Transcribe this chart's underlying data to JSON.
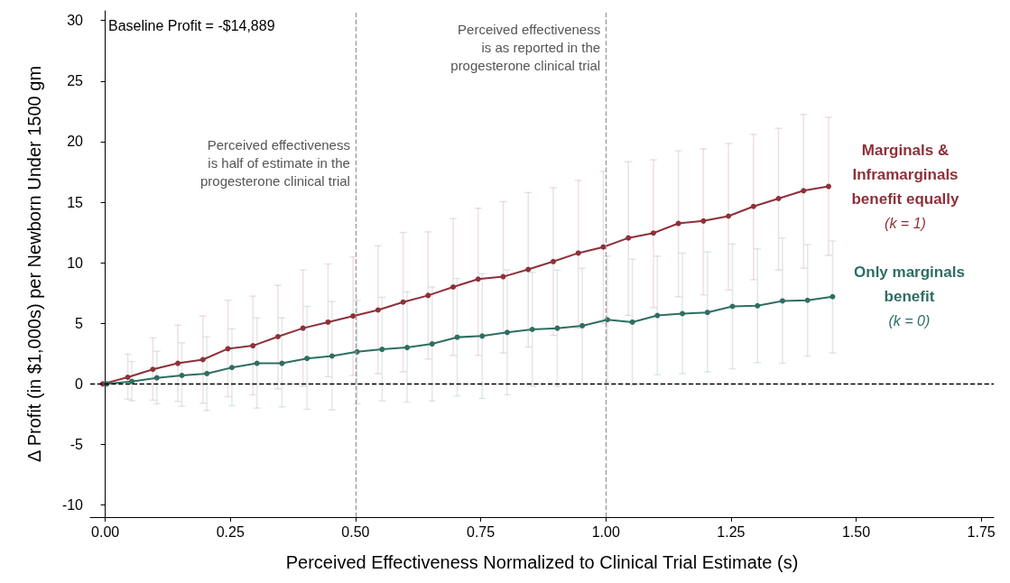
{
  "chart_data": {
    "type": "line",
    "xlabel": "Perceived Effectiveness Normalized to Clinical Trial Estimate (s)",
    "ylabel": "Δ Profit (in $1,000s) per Newborn Under 1500 gm",
    "series": [
      {
        "name": "Marginals &\nInframarginals\nbenefit equally\n(k = 1)",
        "color": "#8e3039",
        "x": [
          -0.005,
          0.045,
          0.095,
          0.145,
          0.195,
          0.245,
          0.295,
          0.345,
          0.395,
          0.445,
          0.495,
          0.545,
          0.595,
          0.645,
          0.695,
          0.745,
          0.795,
          0.845,
          0.895,
          0.945,
          0.995,
          1.045,
          1.095,
          1.145,
          1.195,
          1.245,
          1.295,
          1.345,
          1.395,
          1.445
        ],
        "values": [
          0,
          0.55,
          1.2,
          1.7,
          2.0,
          2.9,
          3.15,
          3.9,
          4.6,
          5.1,
          5.6,
          6.1,
          6.75,
          7.3,
          8.0,
          8.65,
          8.85,
          9.45,
          10.1,
          10.8,
          11.3,
          12.05,
          12.45,
          13.25,
          13.45,
          13.85,
          14.65,
          15.3,
          15.95,
          16.3
        ],
        "errors": [
          null,
          [
            -1.25,
            2.45
          ],
          [
            -1.35,
            3.8
          ],
          [
            -1.45,
            4.85
          ],
          [
            -1.6,
            5.6
          ],
          [
            -1.05,
            6.9
          ],
          [
            -0.9,
            7.25
          ],
          [
            -0.4,
            8.15
          ],
          [
            -0.2,
            9.4
          ],
          [
            0.6,
            9.9
          ],
          [
            0.7,
            10.5
          ],
          [
            0.85,
            11.4
          ],
          [
            1.0,
            12.5
          ],
          [
            2.05,
            12.55
          ],
          [
            2.35,
            13.65
          ],
          [
            2.35,
            14.5
          ],
          [
            2.55,
            15.05
          ],
          [
            3.05,
            15.8
          ],
          [
            4.0,
            16.2
          ],
          [
            4.6,
            16.8
          ],
          [
            5.0,
            17.55
          ],
          [
            5.65,
            18.35
          ],
          [
            6.3,
            18.5
          ],
          [
            7.2,
            19.25
          ],
          [
            7.35,
            19.4
          ],
          [
            7.75,
            19.85
          ],
          [
            8.6,
            20.6
          ],
          [
            9.4,
            21.1
          ],
          [
            9.55,
            22.25
          ],
          [
            10.6,
            22.0
          ]
        ]
      },
      {
        "name": "Only marginals\nbenefit\n(k = 0)",
        "color": "#2e6e63",
        "x": [
          0.003,
          0.053,
          0.103,
          0.153,
          0.203,
          0.253,
          0.303,
          0.353,
          0.403,
          0.453,
          0.503,
          0.553,
          0.603,
          0.653,
          0.703,
          0.753,
          0.803,
          0.853,
          0.903,
          0.953,
          1.003,
          1.053,
          1.103,
          1.153,
          1.203,
          1.253,
          1.303,
          1.353,
          1.403,
          1.453
        ],
        "values": [
          0,
          0.2,
          0.5,
          0.7,
          0.85,
          1.35,
          1.7,
          1.7,
          2.1,
          2.3,
          2.65,
          2.85,
          3.0,
          3.3,
          3.85,
          3.95,
          4.25,
          4.5,
          4.6,
          4.8,
          5.3,
          5.1,
          5.65,
          5.8,
          5.9,
          6.4,
          6.45,
          6.85,
          6.9,
          7.2
        ],
        "errors": [
          null,
          [
            -1.4,
            1.85
          ],
          [
            -1.65,
            2.7
          ],
          [
            -1.85,
            3.4
          ],
          [
            -2.2,
            3.9
          ],
          [
            -1.8,
            4.55
          ],
          [
            -2.0,
            5.45
          ],
          [
            -1.9,
            5.45
          ],
          [
            -2.1,
            6.4
          ],
          [
            -2.15,
            6.8
          ],
          [
            -1.65,
            6.9
          ],
          [
            -1.4,
            7.15
          ],
          [
            -1.5,
            7.6
          ],
          [
            -1.4,
            8.0
          ],
          [
            -1.0,
            8.7
          ],
          [
            -1.2,
            9.1
          ],
          [
            -0.9,
            9.4
          ],
          [
            -0.2,
            9.2
          ],
          [
            -0.2,
            9.4
          ],
          [
            0.0,
            9.55
          ],
          [
            0.15,
            10.55
          ],
          [
            -0.1,
            10.3
          ],
          [
            0.75,
            10.55
          ],
          [
            0.85,
            10.8
          ],
          [
            1.0,
            10.9
          ],
          [
            1.25,
            11.55
          ],
          [
            1.75,
            11.15
          ],
          [
            1.7,
            12.05
          ],
          [
            2.3,
            11.5
          ],
          [
            2.55,
            11.8
          ]
        ]
      }
    ],
    "xlim": [
      -0.03,
      1.775
    ],
    "ylim": [
      -11,
      30.8
    ],
    "xticks": [
      {
        "value": 0,
        "label": "0.00"
      },
      {
        "value": 0.25,
        "label": "0.25"
      },
      {
        "value": 0.5,
        "label": "0.50"
      },
      {
        "value": 0.75,
        "label": "0.75"
      },
      {
        "value": 1,
        "label": "1.00"
      },
      {
        "value": 1.25,
        "label": "1.25"
      },
      {
        "value": 1.5,
        "label": "1.50"
      },
      {
        "value": 1.75,
        "label": "1.75"
      }
    ],
    "yticks": [
      -10,
      -5,
      0,
      5,
      10,
      15,
      20,
      25,
      30
    ],
    "ref_lines": [
      {
        "axis": "y",
        "value": 0,
        "color": "#000000",
        "line_style": "dashed"
      },
      {
        "axis": "x",
        "value": 0.5,
        "color": "#999999",
        "line_style": "dashed"
      },
      {
        "axis": "x",
        "value": 1.0,
        "color": "#999999",
        "line_style": "dashed"
      }
    ],
    "annotations": [
      "Baseline Profit = -$14,889",
      {
        "text": "Perceived effectiveness\nis half of estimate in the\nprogesterone clinical trial",
        "x": 0.5,
        "y": 20.5
      },
      {
        "text": "Perceived effectiveness\nis as reported in the\nprogesterone clinical trial",
        "x": 1.0,
        "y": 30
      }
    ],
    "grid": false,
    "legend": false,
    "marker": "circle",
    "line_style": "solid"
  }
}
